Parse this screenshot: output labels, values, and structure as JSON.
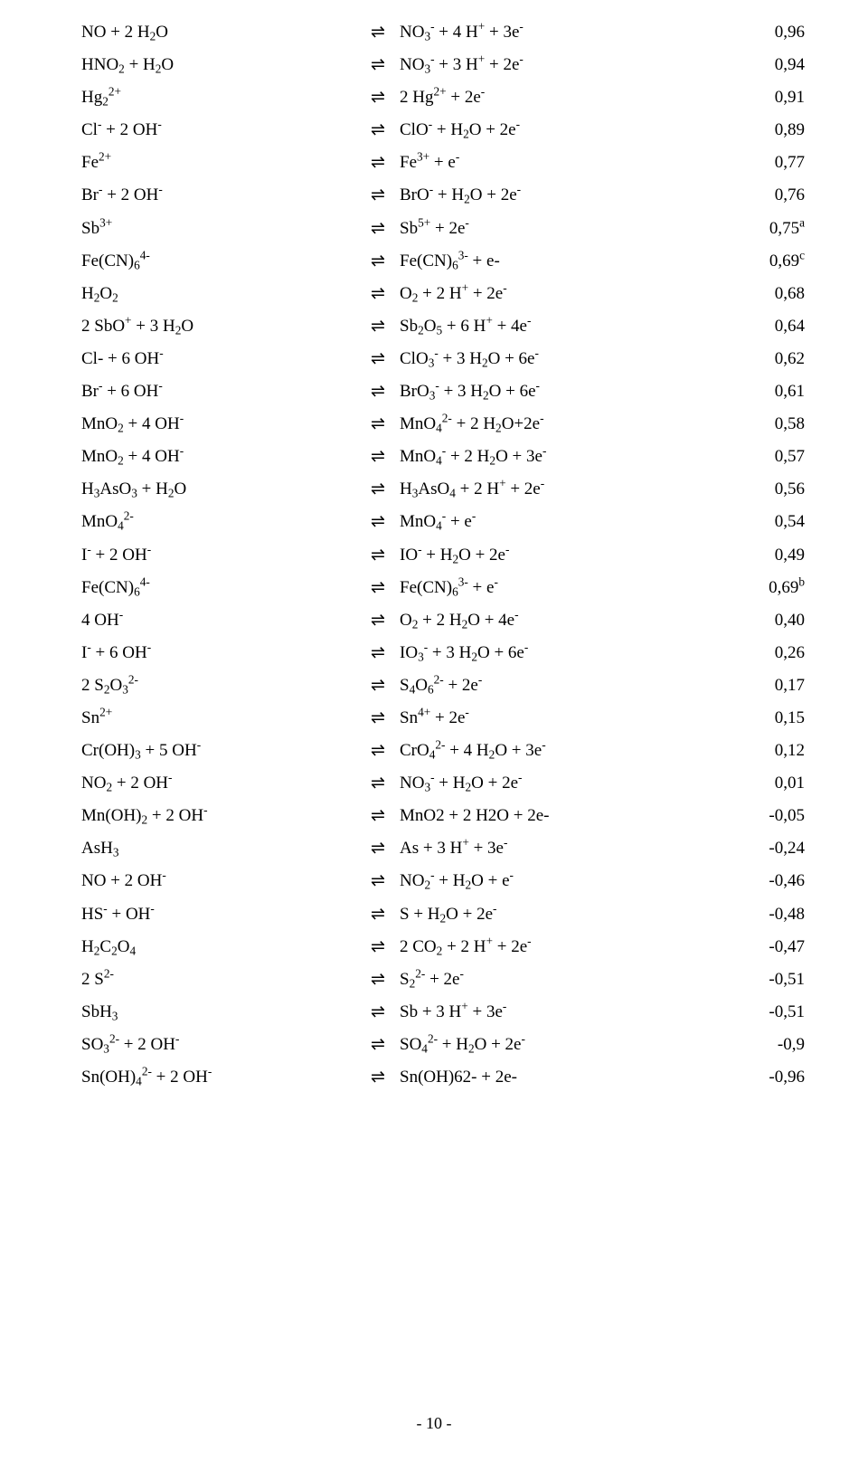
{
  "page_number": "- 10 -",
  "equilibrium_symbol": "⇌",
  "rows": [
    {
      "left": "NO + 2 H<sub>2</sub>O",
      "right": "NO<sub>3</sub><sup>-</sup> + 4 H<sup>+</sup> + 3e<sup>-</sup>",
      "value": "0,96"
    },
    {
      "left": "HNO<sub>2</sub> + H<sub>2</sub>O",
      "right": "NO<sub>3</sub><sup>-</sup> + 3 H<sup>+</sup> + 2e<sup>-</sup>",
      "value": "0,94"
    },
    {
      "left": "Hg<sub>2</sub><sup>2+</sup>",
      "right": "2 Hg<sup>2+</sup> + 2e<sup>-</sup>",
      "value": "0,91"
    },
    {
      "left": "Cl<sup>-</sup> + 2 OH<sup>-</sup>",
      "right": "ClO<sup>-</sup> + H<sub>2</sub>O + 2e<sup>-</sup>",
      "value": "0,89"
    },
    {
      "left": "Fe<sup>2+</sup>",
      "right": "Fe<sup>3+</sup> + e<sup>-</sup>",
      "value": "0,77"
    },
    {
      "left": "Br<sup>-</sup> + 2 OH<sup>-</sup>",
      "right": "BrO<sup>-</sup> + H<sub>2</sub>O + 2e<sup>-</sup>",
      "value": "0,76"
    },
    {
      "left": "Sb<sup>3+</sup>",
      "right": "Sb<sup>5+</sup> + 2e<sup>-</sup>",
      "value": "0,75<sup>a</sup>"
    },
    {
      "left": "Fe(CN)<sub>6</sub><sup>4-</sup>",
      "right": "Fe(CN)<sub>6</sub><sup>3-</sup> + e-",
      "value": "0,69<sup>c</sup>"
    },
    {
      "left": "H<sub>2</sub>O<sub>2</sub>",
      "right": "O<sub>2</sub> + 2 H<sup>+</sup> + 2e<sup>-</sup>",
      "value": "0,68"
    },
    {
      "left": "2 SbO<sup>+</sup> + 3 H<sub>2</sub>O",
      "right": "Sb<sub>2</sub>O<sub>5</sub> + 6 H<sup>+</sup> + 4e<sup>-</sup>",
      "value": "0,64"
    },
    {
      "left": "Cl- + 6 OH<sup>-</sup>",
      "right": "ClO<sub>3</sub><sup>-</sup> + 3 H<sub>2</sub>O + 6e<sup>-</sup>",
      "value": "0,62"
    },
    {
      "left": "Br<sup>-</sup> + 6 OH<sup>-</sup>",
      "right": "BrO<sub>3</sub><sup>-</sup> + 3 H<sub>2</sub>O + 6e<sup>-</sup>",
      "value": "0,61"
    },
    {
      "left": "MnO<sub>2</sub> + 4 OH<sup>-</sup>",
      "right": "MnO<sub>4</sub><sup>2-</sup> + 2 H<sub>2</sub>O+2e<sup>-</sup>",
      "value": "0,58"
    },
    {
      "left": "MnO<sub>2</sub> + 4 OH<sup>-</sup>",
      "right": "MnO<sub>4</sub><sup>-</sup> + 2 H<sub>2</sub>O + 3e<sup>-</sup>",
      "value": "0,57"
    },
    {
      "left": "H<sub>3</sub>AsO<sub>3</sub> + H<sub>2</sub>O",
      "right": "H<sub>3</sub>AsO<sub>4</sub> + 2 H<sup>+</sup> + 2e<sup>-</sup>",
      "value": "0,56"
    },
    {
      "left": "MnO<sub>4</sub><sup>2-</sup>",
      "right": "MnO<sub>4</sub><sup>-</sup> + e<sup>-</sup>",
      "value": "0,54"
    },
    {
      "left": "I<sup>-</sup> + 2 OH<sup>-</sup>",
      "right": "IO<sup>-</sup> + H<sub>2</sub>O + 2e<sup>-</sup>",
      "value": "0,49"
    },
    {
      "left": "Fe(CN)<sub>6</sub><sup>4-</sup>",
      "right": "Fe(CN)<sub>6</sub><sup>3-</sup> + e<sup>-</sup>",
      "value": "0,69<sup>b</sup>"
    },
    {
      "left": "4 OH<sup>-</sup>",
      "right": "O<sub>2</sub> + 2 H<sub>2</sub>O + 4e<sup>-</sup>",
      "value": "0,40"
    },
    {
      "left": "I<sup>-</sup> + 6 OH<sup>-</sup>",
      "right": "IO<sub>3</sub><sup>-</sup> + 3 H<sub>2</sub>O + 6e<sup>-</sup>",
      "value": "0,26"
    },
    {
      "left": "2 S<sub>2</sub>O<sub>3</sub><sup>2-</sup>",
      "right": "S<sub>4</sub>O<sub>6</sub><sup>2-</sup> + 2e<sup>-</sup>",
      "value": "0,17"
    },
    {
      "left": "Sn<sup>2+</sup>",
      "right": "Sn<sup>4+</sup> + 2e<sup>-</sup>",
      "value": "0,15"
    },
    {
      "left": "Cr(OH)<sub>3</sub> + 5 OH<sup>-</sup>",
      "right": "CrO<sub>4</sub><sup>2-</sup> + 4 H<sub>2</sub>O + 3e<sup>-</sup>",
      "value": "0,12"
    },
    {
      "left": "NO<sub>2</sub> + 2 OH<sup>-</sup>",
      "right": "NO<sub>3</sub><sup>-</sup> + H<sub>2</sub>O + 2e<sup>-</sup>",
      "value": "0,01"
    },
    {
      "left": "Mn(OH)<sub>2</sub> + 2 OH<sup>-</sup>",
      "right": "MnO2 + 2 H2O + 2e-",
      "value": "-0,05"
    },
    {
      "left": "AsH<sub>3</sub>",
      "right": "As + 3 H<sup>+</sup> + 3e<sup>-</sup>",
      "value": "-0,24"
    },
    {
      "left": "NO + 2 OH<sup>-</sup>",
      "right": "NO<sub>2</sub><sup>-</sup> + H<sub>2</sub>O + e<sup>-</sup>",
      "value": "-0,46"
    },
    {
      "left": "HS<sup>-</sup> + OH<sup>-</sup>",
      "right": "S + H<sub>2</sub>O + 2e<sup>-</sup>",
      "value": "-0,48"
    },
    {
      "left": "H<sub>2</sub>C<sub>2</sub>O<sub>4</sub>",
      "right": "2 CO<sub>2</sub> + 2 H<sup>+</sup> + 2e<sup>-</sup>",
      "value": "-0,47"
    },
    {
      "left": "2 S<sup>2-</sup>",
      "right": "S<sub>2</sub><sup>2-</sup> + 2e<sup>-</sup>",
      "value": "-0,51"
    },
    {
      "left": "SbH<sub>3</sub>",
      "right": "Sb + 3 H<sup>+</sup> + 3e<sup>-</sup>",
      "value": "-0,51"
    },
    {
      "left": "SO<sub>3</sub><sup>2-</sup> + 2 OH<sup>-</sup>",
      "right": "SO<sub>4</sub><sup>2-</sup> + H<sub>2</sub>O + 2e<sup>-</sup>",
      "value": "-0,9"
    },
    {
      "left": "Sn(OH)<sub>4</sub><sup>2-</sup> + 2 OH<sup>-</sup>",
      "right": "Sn(OH)62- + 2e-",
      "value": "-0,96"
    }
  ]
}
